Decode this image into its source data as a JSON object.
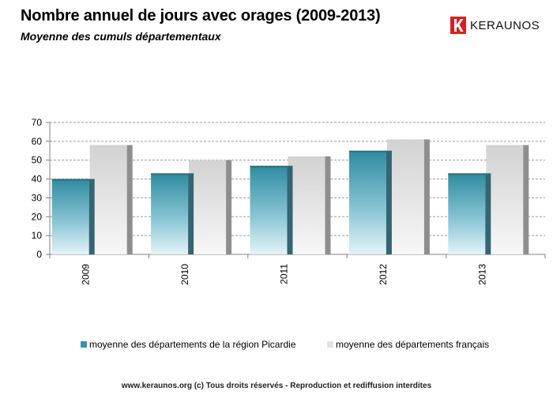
{
  "header": {
    "title": "Nombre annuel de jours avec orages (2009-2013)",
    "subtitle": "Moyenne des cumuls départementaux"
  },
  "logo": {
    "name": "KERAUNOS",
    "icon": "keraunos-logo-icon",
    "color": "#d62020"
  },
  "chart_data": {
    "type": "bar",
    "categories": [
      "2009",
      "2010",
      "2011",
      "2012",
      "2013"
    ],
    "series": [
      {
        "name": "moyenne des départements de la région Picardie",
        "values": [
          40,
          43,
          47,
          55,
          43
        ],
        "color": "#3a93a8"
      },
      {
        "name": "moyenne des départements français",
        "values": [
          58,
          50,
          52,
          61,
          58
        ],
        "color": "#c8c8c8"
      }
    ],
    "ylim": [
      0,
      70
    ],
    "yticks": [
      0,
      10,
      20,
      30,
      40,
      50,
      60,
      70
    ],
    "grid": true,
    "legend_position": "bottom",
    "style": "3d-column"
  },
  "footer": "www.keraunos.org   (c) Tous droits réservés - Reproduction et rediffusion interdites"
}
